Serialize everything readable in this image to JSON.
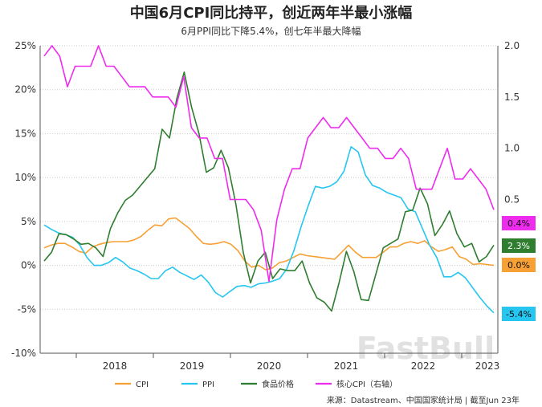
{
  "title": "中国6月CPI同比持平，创近两年半最小涨幅",
  "subtitle": "6月PPI同比下降5.4%，创七年半最大降幅",
  "source": "来源：Datastream、中国国家统计局 | 截至Jun 23年",
  "watermark": "FastBull",
  "chart_data": {
    "type": "line",
    "left_axis": {
      "ticks": [
        "25%",
        "20%",
        "15%",
        "10%",
        "5%",
        "0%",
        "-5%",
        "-10%"
      ],
      "range": [
        -10,
        25
      ]
    },
    "right_axis": {
      "ticks": [
        "2.0",
        "1.5",
        "1.0",
        "0.5"
      ],
      "range": [
        -1.0,
        2.0
      ]
    },
    "x_labels": [
      "2018",
      "2019",
      "2020",
      "2021",
      "2022",
      "2023"
    ],
    "x_range": [
      "2017-08",
      "2023-06"
    ],
    "grid": "horizontal dotted",
    "legend_placement": "bottom",
    "series": [
      {
        "name": "CPI",
        "color": "#f7a035",
        "axis": "left",
        "callout": "0.0%",
        "values": [
          2.0,
          2.3,
          2.5,
          2.5,
          2.1,
          1.6,
          1.4,
          2.1,
          2.4,
          2.6,
          2.7,
          2.7,
          2.7,
          2.9,
          3.3,
          4.0,
          4.6,
          4.5,
          5.3,
          5.4,
          4.8,
          4.2,
          3.3,
          2.5,
          2.4,
          2.5,
          2.7,
          2.4,
          1.7,
          0.5,
          -0.2,
          0.0,
          -0.5,
          -0.3,
          0.3,
          0.5,
          0.9,
          1.3,
          1.1,
          1.0,
          0.9,
          0.8,
          0.7,
          1.5,
          2.3,
          1.5,
          0.9,
          0.9,
          0.9,
          1.5,
          2.1,
          2.1,
          2.5,
          2.7,
          2.5,
          2.8,
          2.1,
          1.6,
          1.8,
          2.1,
          1.0,
          0.7,
          0.1,
          0.2,
          0.1,
          0.0
        ]
      },
      {
        "name": "PPI",
        "color": "#26c6f0",
        "axis": "left",
        "callout": "-5.4%",
        "values": [
          4.6,
          4.1,
          3.7,
          3.5,
          3.2,
          2.3,
          0.9,
          0.0,
          0.0,
          0.3,
          0.9,
          0.4,
          -0.3,
          -0.6,
          -1.0,
          -1.5,
          -1.5,
          -0.6,
          -0.2,
          -0.8,
          -1.2,
          -1.6,
          -1.1,
          -1.9,
          -3.1,
          -3.6,
          -3.0,
          -2.4,
          -2.3,
          -2.5,
          -2.1,
          -2.0,
          -1.8,
          -1.5,
          -0.4,
          1.7,
          4.4,
          6.8,
          9.0,
          8.8,
          9.0,
          9.5,
          10.7,
          13.5,
          12.9,
          10.3,
          9.1,
          8.8,
          8.3,
          8.0,
          7.7,
          6.4,
          6.1,
          4.2,
          2.3,
          0.9,
          -1.3,
          -1.3,
          -0.8,
          -1.4,
          -2.5,
          -3.6,
          -4.6,
          -5.4
        ]
      },
      {
        "name": "食品价格",
        "color": "#2f7d2f",
        "axis": "left",
        "callout": "2.3%",
        "values": [
          0.5,
          1.5,
          3.6,
          3.5,
          3.0,
          2.4,
          2.5,
          2.0,
          1.0,
          4.2,
          6.0,
          7.4,
          8.0,
          9.0,
          10.0,
          11.0,
          15.5,
          14.5,
          19.0,
          22.0,
          18.0,
          15.0,
          10.6,
          11.1,
          13.1,
          11.1,
          7.0,
          1.5,
          -2.0,
          0.5,
          1.5,
          -1.5,
          -0.4,
          -0.6,
          -0.6,
          0.5,
          -2.0,
          -3.7,
          -4.2,
          -5.2,
          -2.0,
          1.6,
          -0.7,
          -3.9,
          -4.0,
          -1.0,
          2.0,
          2.5,
          3.0,
          6.1,
          6.3,
          8.8,
          7.0,
          3.4,
          4.6,
          6.2,
          3.6,
          2.1,
          2.5,
          0.4,
          1.0,
          2.3
        ]
      },
      {
        "name": "核心CPI（右轴）",
        "color": "#ee2cee",
        "axis": "right",
        "callout": "0.4%",
        "values": [
          1.9,
          2.0,
          1.9,
          1.6,
          1.8,
          1.8,
          1.8,
          2.0,
          1.8,
          1.8,
          1.7,
          1.6,
          1.6,
          1.6,
          1.5,
          1.5,
          1.5,
          1.4,
          1.7,
          1.2,
          1.1,
          1.1,
          0.9,
          0.9,
          0.5,
          0.5,
          0.5,
          0.4,
          0.2,
          -0.3,
          0.3,
          0.6,
          0.8,
          0.8,
          1.1,
          1.2,
          1.3,
          1.2,
          1.2,
          1.3,
          1.2,
          1.1,
          1.0,
          1.0,
          0.9,
          0.9,
          1.0,
          0.9,
          0.6,
          0.6,
          0.6,
          0.8,
          1.0,
          0.7,
          0.7,
          0.8,
          0.7,
          0.6,
          0.4
        ]
      }
    ]
  }
}
